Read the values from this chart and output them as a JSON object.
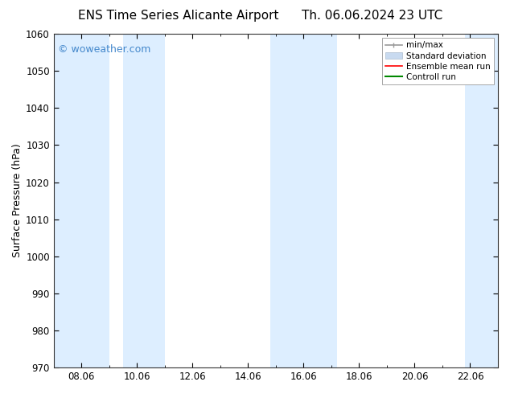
{
  "title_left": "ENS Time Series Alicante Airport",
  "title_right": "Th. 06.06.2024 23 UTC",
  "ylabel": "Surface Pressure (hPa)",
  "ylim": [
    970,
    1060
  ],
  "yticks": [
    970,
    980,
    990,
    1000,
    1010,
    1020,
    1030,
    1040,
    1050,
    1060
  ],
  "xtick_positions": [
    8,
    10,
    12,
    14,
    16,
    18,
    20,
    22
  ],
  "xtick_labels": [
    "08.06",
    "10.06",
    "12.06",
    "14.06",
    "16.06",
    "18.06",
    "20.06",
    "22.06"
  ],
  "xlim": [
    7.0,
    23.0
  ],
  "watermark": "© woweather.com",
  "watermark_color": "#4488cc",
  "bg_color": "#ffffff",
  "plot_bg_color": "#ffffff",
  "shaded_bands": [
    {
      "xstart": 7.0,
      "xend": 9.0,
      "color": "#ddeeff"
    },
    {
      "xstart": 9.5,
      "xend": 11.0,
      "color": "#ddeeff"
    },
    {
      "xstart": 14.8,
      "xend": 15.8,
      "color": "#ddeeff"
    },
    {
      "xstart": 15.8,
      "xend": 17.2,
      "color": "#ddeeff"
    },
    {
      "xstart": 21.8,
      "xend": 23.0,
      "color": "#ddeeff"
    }
  ],
  "legend_entries": [
    {
      "label": "min/max",
      "color": "#999999",
      "lw": 1.2
    },
    {
      "label": "Standard deviation",
      "color": "#c8daf0",
      "lw": 7
    },
    {
      "label": "Ensemble mean run",
      "color": "#ff0000",
      "lw": 1.2
    },
    {
      "label": "Controll run",
      "color": "#008800",
      "lw": 1.5
    }
  ],
  "title_fontsize": 11,
  "ylabel_fontsize": 9,
  "tick_fontsize": 8.5,
  "legend_fontsize": 7.5,
  "watermark_fontsize": 9
}
